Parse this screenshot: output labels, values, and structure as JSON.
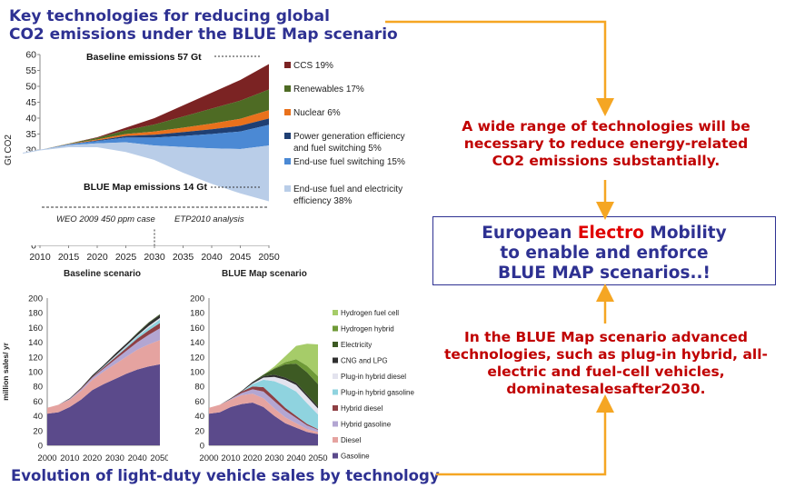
{
  "title_top": [
    "Key technologies for reducing global",
    "CO2 emissions under the BLUE Map scenario"
  ],
  "title_bottom": "Evolution of light-duty vehicle sales by technology",
  "right_text_1": [
    "A wide range of technologies will be",
    "necessary to reduce energy-related",
    "CO2 emissions substantially."
  ],
  "box": {
    "line1_a": "European ",
    "line1_b": "Electro",
    "line1_c": " Mobility",
    "line2": "to enable and enforce",
    "line3": "BLUE MAP scenarios..!"
  },
  "right_text_2": [
    "In the BLUE Map scenario advanced",
    "technologies, such as plug-in hybrid, all-",
    "electric and fuel-cell vehicles,",
    "dominatesalesafter2030."
  ],
  "colors": {
    "title": "#2e3192",
    "red": "#c00000",
    "arrow": "#f5a623"
  },
  "chart_data": [
    {
      "type": "area",
      "ylabel": "Gt CO2",
      "ylim": [
        0,
        60
      ],
      "yticks": [
        0,
        5,
        10,
        15,
        20,
        25,
        30,
        35,
        40,
        45,
        50,
        55,
        60
      ],
      "xticks": [
        2010,
        2015,
        2020,
        2025,
        2030,
        2035,
        2040,
        2045,
        2050
      ],
      "x": [
        2007,
        2010,
        2015,
        2020,
        2025,
        2030,
        2035,
        2040,
        2045,
        2050
      ],
      "baseline": [
        29,
        30,
        32,
        34,
        37,
        40,
        44,
        48,
        52,
        57
      ],
      "blue_map_line": [
        29,
        30,
        31,
        31,
        29.5,
        27,
        23,
        19.5,
        16.5,
        14
      ],
      "series": [
        {
          "name": "CCS 19%",
          "color": "#7b2323",
          "values": [
            0,
            0,
            0,
            0.2,
            0.8,
            2,
            3.5,
            5,
            6.5,
            8
          ]
        },
        {
          "name": "Renewables 17%",
          "color": "#4e6b24",
          "values": [
            0,
            0,
            0.1,
            0.5,
            1.2,
            2.2,
            3.5,
            4.7,
            5.7,
            6.5
          ]
        },
        {
          "name": "Nuclear 6%",
          "color": "#e9711c",
          "values": [
            0,
            0,
            0.1,
            0.3,
            0.6,
            1,
            1.4,
            1.8,
            2.2,
            2.6
          ]
        },
        {
          "name": "Power generation efficiency and fuel switching 5%",
          "color": "#1f3f73",
          "values": [
            0,
            0,
            0,
            0.2,
            0.5,
            0.9,
            1.2,
            1.5,
            1.8,
            2
          ]
        },
        {
          "name": "End-use fuel switching 15%",
          "color": "#4b89d4",
          "values": [
            0,
            0,
            0.3,
            0.7,
            1.5,
            2.5,
            3.5,
            4.5,
            5.5,
            6.5
          ]
        },
        {
          "name": "End-use fuel and electricity efficiency 38%",
          "color": "#b9cde8",
          "values": [
            0,
            0,
            0.5,
            2.3,
            4.5,
            7.4,
            10.4,
            13.2,
            15.8,
            18
          ]
        }
      ],
      "annotations": {
        "baseline": "Baseline emissions 57 Gt",
        "blue": "BLUE Map  emissions 14 Gt",
        "weo": "WEO 2009 450 ppm case",
        "etp": "ETP2010 analysis"
      }
    },
    {
      "type": "area",
      "title": "Baseline scenario",
      "ylabel": "million sales/ yr",
      "ylim": [
        0,
        200
      ],
      "yticks": [
        0,
        20,
        40,
        60,
        80,
        100,
        120,
        140,
        160,
        180,
        200
      ],
      "xticks": [
        2000,
        2010,
        2020,
        2030,
        2040,
        2050
      ],
      "x": [
        2000,
        2005,
        2010,
        2015,
        2020,
        2025,
        2030,
        2035,
        2040,
        2045,
        2050
      ],
      "series": [
        {
          "name": "Gasoline",
          "values": [
            43,
            45,
            52,
            62,
            75,
            83,
            90,
            97,
            103,
            107,
            110
          ]
        },
        {
          "name": "Diesel",
          "values": [
            8,
            10,
            10,
            12,
            14,
            17,
            20,
            23,
            27,
            30,
            33
          ]
        },
        {
          "name": "Hybrid gasoline",
          "values": [
            0,
            0,
            1,
            2,
            3,
            4,
            6,
            8,
            10,
            13,
            16
          ]
        },
        {
          "name": "Hybrid diesel",
          "values": [
            0,
            0,
            0,
            1,
            1,
            2,
            3,
            4,
            5,
            6,
            7
          ]
        },
        {
          "name": "Plug-in hybrid gasoline",
          "values": [
            0,
            0,
            0,
            0,
            0,
            1,
            1,
            2,
            3,
            4,
            5
          ]
        },
        {
          "name": "Plug-in hybrid diesel",
          "values": [
            0,
            0,
            0,
            0,
            0,
            0,
            1,
            1,
            1,
            2,
            2
          ]
        },
        {
          "name": "CNG and LPG",
          "values": [
            0,
            0,
            1,
            1,
            2,
            2,
            3,
            3,
            3,
            4,
            4
          ]
        },
        {
          "name": "Electricity",
          "values": [
            0,
            0,
            0,
            0,
            0,
            0,
            0,
            0,
            1,
            1,
            1
          ]
        },
        {
          "name": "Hydrogen hybrid",
          "values": [
            0,
            0,
            0,
            0,
            0,
            0,
            0,
            0,
            0,
            0,
            0
          ]
        },
        {
          "name": "Hydrogen fuel cell",
          "values": [
            0,
            0,
            0,
            0,
            0,
            0,
            0,
            0,
            0,
            0,
            0
          ]
        }
      ]
    },
    {
      "type": "area",
      "title": "BLUE Map scenario",
      "ylim": [
        0,
        200
      ],
      "xticks": [
        2000,
        2010,
        2020,
        2030,
        2040,
        2050
      ],
      "x": [
        2000,
        2005,
        2010,
        2015,
        2020,
        2025,
        2030,
        2035,
        2040,
        2045,
        2050
      ],
      "series": [
        {
          "name": "Gasoline",
          "color": "#5b4a8b",
          "values": [
            43,
            45,
            52,
            56,
            58,
            52,
            40,
            30,
            24,
            18,
            15
          ]
        },
        {
          "name": "Diesel",
          "color": "#e5a3a0",
          "values": [
            8,
            10,
            10,
            12,
            12,
            12,
            10,
            8,
            6,
            4,
            3
          ]
        },
        {
          "name": "Hybrid gasoline",
          "color": "#b3a6d2",
          "values": [
            0,
            0,
            1,
            3,
            6,
            9,
            10,
            9,
            7,
            5,
            3
          ]
        },
        {
          "name": "Hybrid diesel",
          "color": "#8e3f44",
          "values": [
            0,
            0,
            0,
            2,
            4,
            6,
            5,
            4,
            3,
            2,
            1
          ]
        },
        {
          "name": "Plug-in hybrid gasoline",
          "color": "#8fd3df",
          "values": [
            0,
            0,
            0,
            0,
            3,
            10,
            22,
            30,
            33,
            28,
            20
          ]
        },
        {
          "name": "Plug-in hybrid diesel",
          "color": "#e3e3ee",
          "values": [
            0,
            0,
            0,
            0,
            1,
            3,
            6,
            8,
            9,
            9,
            8
          ]
        },
        {
          "name": "CNG and LPG",
          "color": "#2f2f2f",
          "values": [
            0,
            0,
            1,
            1,
            2,
            2,
            3,
            3,
            3,
            3,
            3
          ]
        },
        {
          "name": "Electricity",
          "color": "#3d5a23",
          "values": [
            0,
            0,
            0,
            0,
            0,
            2,
            8,
            18,
            26,
            30,
            30
          ]
        },
        {
          "name": "Hydrogen hybrid",
          "color": "#6f9a37",
          "values": [
            0,
            0,
            0,
            0,
            0,
            0,
            1,
            3,
            6,
            9,
            11
          ]
        },
        {
          "name": "Hydrogen fuel cell",
          "color": "#a6cc69",
          "values": [
            0,
            0,
            0,
            0,
            0,
            0,
            2,
            8,
            18,
            30,
            43
          ]
        }
      ]
    }
  ]
}
